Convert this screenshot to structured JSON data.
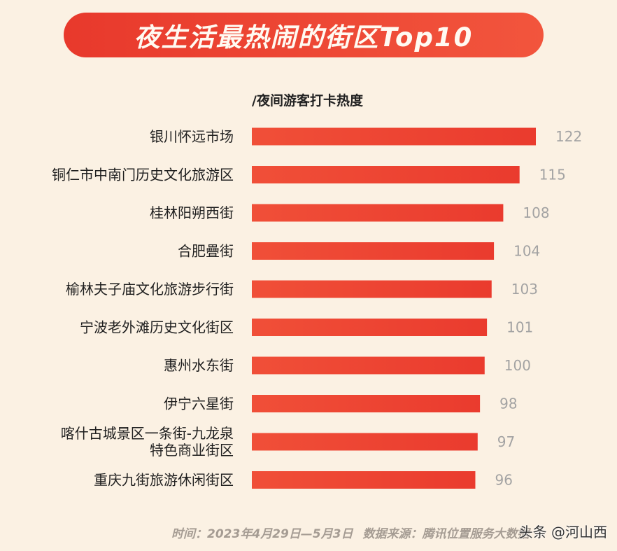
{
  "title": "夜生活最热闹的街区Top10",
  "chart_data": {
    "type": "bar",
    "orientation": "horizontal",
    "title": "夜生活最热闹的街区Top10",
    "unit_label": "/夜间游客打卡热度",
    "categories": [
      "银川怀远市场",
      "铜仁市中南门历史文化旅游区",
      "桂林阳朔西街",
      "合肥疊街",
      "榆林夫子庙文化旅游步行街",
      "宁波老外滩历史文化街区",
      "惠州水东街",
      "伊宁六星街",
      "喀什古城景区一条街-九龙泉\n特色商业街区",
      "重庆九街旅游休闲街区"
    ],
    "values": [
      122,
      115,
      108,
      104,
      103,
      101,
      100,
      98,
      97,
      96
    ],
    "bar_color": "#ea3b2e",
    "value_label_color": "#a3a3a3",
    "grid": false,
    "legend": "none"
  },
  "footer": {
    "time": "时间：2023年4月29日—5月3日",
    "source": "数据来源：腾讯位置服务大数据"
  },
  "watermark": "头条 @河山西"
}
